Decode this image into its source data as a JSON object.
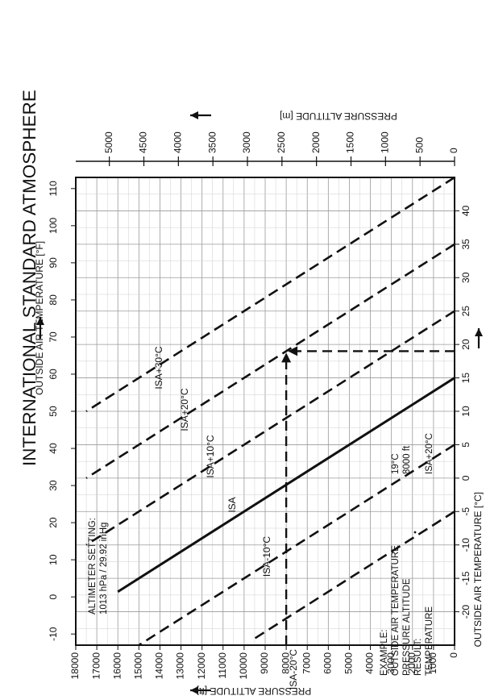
{
  "chart_data": {
    "type": "line",
    "title": "INTERNATIONAL STANDARD ATMOSPHERE",
    "x_axis": {
      "label": "OUTSIDE AIR TEMPERATURE [°C]",
      "unit": "°C",
      "range": [
        -25,
        45
      ],
      "ticks": [
        -20,
        -15,
        -10,
        -5,
        0,
        5,
        10,
        15,
        20,
        25,
        30,
        35,
        40
      ]
    },
    "x2_axis": {
      "label": "OUTSIDE AIR TEMPERATURE [°F]",
      "unit": "°F",
      "range": [
        -13,
        113
      ],
      "ticks": [
        -10,
        0,
        10,
        20,
        30,
        40,
        50,
        60,
        70,
        80,
        90,
        100,
        110
      ]
    },
    "y_axis": {
      "label": "PRESSURE ALTITUDE [ft]",
      "unit": "ft",
      "range": [
        0,
        18000
      ],
      "ticks": [
        0,
        1000,
        2000,
        3000,
        4000,
        5000,
        6000,
        7000,
        8000,
        9000,
        10000,
        11000,
        12000,
        13000,
        14000,
        15000,
        16000,
        17000,
        18000
      ],
      "tick_labels": [
        "0",
        "1000",
        "2000",
        "3000",
        "4000",
        "5000",
        "6000",
        "7000",
        "8000",
        "9000",
        "10000",
        "11000",
        "12000",
        "13000",
        "14000",
        "15000",
        "16000",
        "17000",
        "18000"
      ]
    },
    "y2_axis": {
      "label": "PRESSURE ALTITUDE [m]",
      "unit": "m",
      "ticks": [
        0,
        500,
        1000,
        1500,
        2000,
        2500,
        3000,
        3500,
        4000,
        4500,
        5000
      ],
      "tick_labels": [
        "0",
        "500",
        "1000",
        "1500",
        "2000",
        "2500",
        "3000",
        "3500",
        "4000",
        "4500",
        "5000"
      ]
    },
    "grid": true,
    "series": [
      {
        "name": "ISA-20°C",
        "style": "dashed",
        "points": [
          [
            -5,
            0
          ],
          [
            -20,
            7500
          ],
          [
            -24,
            9500
          ]
        ]
      },
      {
        "name": "ISA-10°C",
        "style": "dashed",
        "points": [
          [
            5,
            0
          ],
          [
            -25,
            15000
          ]
        ]
      },
      {
        "name": "ISA",
        "style": "solid",
        "points": [
          [
            15,
            0
          ],
          [
            -17,
            16000
          ]
        ]
      },
      {
        "name": "ISA+10°C",
        "style": "dashed",
        "points": [
          [
            25,
            0
          ],
          [
            -10,
            17500
          ]
        ]
      },
      {
        "name": "ISA+20°C",
        "style": "dashed",
        "points": [
          [
            35,
            0
          ],
          [
            0,
            17500
          ]
        ]
      },
      {
        "name": "ISA+30°C",
        "style": "dashed",
        "points": [
          [
            45,
            0
          ],
          [
            10,
            17500
          ]
        ]
      }
    ],
    "example": {
      "heading": "EXAMPLE:",
      "lines": [
        "OUTSIDE AIR TEMPERATURE",
        "PRESSURE ALTITUDE",
        "RESULT:",
        "TEMPERATURE"
      ],
      "values": [
        "19°C",
        "8000 ft",
        "",
        "ISA+20°C"
      ],
      "oat_c": 19,
      "pressure_altitude_ft": 8000
    },
    "altimeter_note": [
      "ALTIMETER SETTING:",
      "1013 hPa / 29.92 inHg"
    ]
  }
}
